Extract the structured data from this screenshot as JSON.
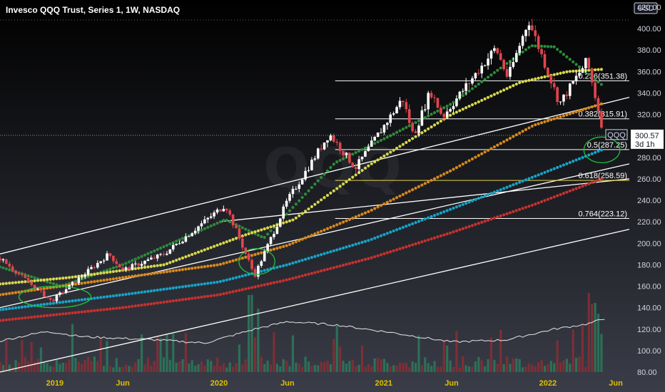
{
  "header": {
    "title": "Invesco QQQ Trust, Series 1, 1W, NASDAQ"
  },
  "watermark": {
    "text": "QQQ"
  },
  "chart_data": {
    "type": "candlestick",
    "title": "Invesco QQQ Trust, Series 1, 1W, NASDAQ",
    "currency": "USD",
    "ylim": [
      80,
      420
    ],
    "y_ticks": [
      80,
      100,
      120,
      140,
      160,
      180,
      200,
      220,
      240,
      260,
      280,
      300,
      320,
      340,
      360,
      380,
      400,
      420
    ],
    "y_tick_labels": [
      "80.00",
      "100.00",
      "120.00",
      "140.00",
      "160.00",
      "180.00",
      "200.00",
      "220.00",
      "240.00",
      "260.00",
      "280.00",
      "300.00",
      "320.00",
      "340.00",
      "360.00",
      "380.00",
      "400.00",
      "420.00"
    ],
    "x_range": [
      "2018-09-01",
      "2022-07-01"
    ],
    "x_ticks": [
      {
        "label": "2019",
        "date": "2019-01-01"
      },
      {
        "label": "Jun",
        "date": "2019-06-01"
      },
      {
        "label": "2020",
        "date": "2020-01-01"
      },
      {
        "label": "Jun",
        "date": "2020-06-01"
      },
      {
        "label": "2021",
        "date": "2021-01-01"
      },
      {
        "label": "Jun",
        "date": "2021-06-01"
      },
      {
        "label": "2022",
        "date": "2022-01-01"
      },
      {
        "label": "Jun",
        "date": "2022-06-01"
      }
    ],
    "price_anchors": [
      {
        "date": "2018-09-01",
        "close": 186
      },
      {
        "date": "2018-12-24",
        "close": 146
      },
      {
        "date": "2019-05-01",
        "close": 190
      },
      {
        "date": "2019-06-01",
        "close": 175
      },
      {
        "date": "2019-09-01",
        "close": 190
      },
      {
        "date": "2020-01-15",
        "close": 236
      },
      {
        "date": "2020-03-20",
        "close": 170
      },
      {
        "date": "2020-06-01",
        "close": 240
      },
      {
        "date": "2020-09-02",
        "close": 302
      },
      {
        "date": "2020-10-30",
        "close": 270
      },
      {
        "date": "2021-02-12",
        "close": 335
      },
      {
        "date": "2021-03-08",
        "close": 300
      },
      {
        "date": "2021-04-15",
        "close": 342
      },
      {
        "date": "2021-05-12",
        "close": 318
      },
      {
        "date": "2021-09-07",
        "close": 382
      },
      {
        "date": "2021-10-04",
        "close": 354
      },
      {
        "date": "2021-11-19",
        "close": 408
      },
      {
        "date": "2022-01-27",
        "close": 330
      },
      {
        "date": "2022-03-29",
        "close": 370
      },
      {
        "date": "2022-05-06",
        "close": 300.57
      }
    ],
    "moving_averages": [
      {
        "color": "#2e8b3a",
        "style": "dots",
        "anchors": [
          {
            "date": "2018-09-01",
            "value": 178
          },
          {
            "date": "2019-01-15",
            "value": 160
          },
          {
            "date": "2019-06-01",
            "value": 180
          },
          {
            "date": "2020-01-15",
            "value": 222
          },
          {
            "date": "2020-04-10",
            "value": 205
          },
          {
            "date": "2020-09-15",
            "value": 275
          },
          {
            "date": "2021-01-15",
            "value": 300
          },
          {
            "date": "2021-06-01",
            "value": 330
          },
          {
            "date": "2021-11-25",
            "value": 384
          },
          {
            "date": "2022-01-15",
            "value": 383
          },
          {
            "date": "2022-04-30",
            "value": 348
          }
        ]
      },
      {
        "color": "#d8d84a",
        "style": "dots",
        "anchors": [
          {
            "date": "2018-09-01",
            "value": 162
          },
          {
            "date": "2019-02-01",
            "value": 168
          },
          {
            "date": "2019-09-01",
            "value": 180
          },
          {
            "date": "2020-03-01",
            "value": 208
          },
          {
            "date": "2020-06-15",
            "value": 222
          },
          {
            "date": "2020-12-01",
            "value": 273
          },
          {
            "date": "2021-06-01",
            "value": 320
          },
          {
            "date": "2021-11-01",
            "value": 350
          },
          {
            "date": "2022-02-15",
            "value": 360
          },
          {
            "date": "2022-05-01",
            "value": 362
          }
        ]
      },
      {
        "color": "#d8891a",
        "style": "dots",
        "anchors": [
          {
            "date": "2018-09-01",
            "value": 152
          },
          {
            "date": "2019-06-01",
            "value": 168
          },
          {
            "date": "2020-01-01",
            "value": 180
          },
          {
            "date": "2020-06-01",
            "value": 198
          },
          {
            "date": "2020-12-01",
            "value": 230
          },
          {
            "date": "2021-06-01",
            "value": 268
          },
          {
            "date": "2021-12-01",
            "value": 310
          },
          {
            "date": "2022-05-01",
            "value": 330
          }
        ]
      },
      {
        "color": "#16a3c8",
        "style": "dots",
        "anchors": [
          {
            "date": "2018-09-01",
            "value": 138
          },
          {
            "date": "2019-06-01",
            "value": 152
          },
          {
            "date": "2020-01-01",
            "value": 164
          },
          {
            "date": "2020-06-01",
            "value": 180
          },
          {
            "date": "2020-12-01",
            "value": 203
          },
          {
            "date": "2021-06-01",
            "value": 232
          },
          {
            "date": "2021-12-01",
            "value": 262
          },
          {
            "date": "2022-05-01",
            "value": 287
          }
        ]
      },
      {
        "color": "#c8312e",
        "style": "dots",
        "anchors": [
          {
            "date": "2018-09-01",
            "value": 128
          },
          {
            "date": "2019-06-01",
            "value": 140
          },
          {
            "date": "2020-01-01",
            "value": 152
          },
          {
            "date": "2020-06-01",
            "value": 166
          },
          {
            "date": "2020-12-01",
            "value": 186
          },
          {
            "date": "2021-06-01",
            "value": 210
          },
          {
            "date": "2021-12-01",
            "value": 236
          },
          {
            "date": "2022-05-01",
            "value": 260
          }
        ]
      }
    ],
    "fibonacci_levels": [
      {
        "ratio": 0.236,
        "price": 351.38,
        "label": "0.236(351.38)",
        "color": "#ffffff"
      },
      {
        "ratio": 0.382,
        "price": 315.91,
        "label": "0.382(315.91)",
        "color": "#ffffff"
      },
      {
        "ratio": 0.5,
        "price": 287.25,
        "label": "0.5(287.25)",
        "color": "#ffffff"
      },
      {
        "ratio": 0.618,
        "price": 258.59,
        "label": "0.618(258.59)",
        "color": "#e8d44a"
      },
      {
        "ratio": 0.764,
        "price": 223.12,
        "label": "0.764(223.12)",
        "color": "#ffffff"
      }
    ],
    "fib_start_date": "2020-09-15",
    "trendlines": [
      {
        "from": {
          "date": "2018-09-01",
          "value": 190
        },
        "to": {
          "date": "2022-07-01",
          "value": 336
        }
      },
      {
        "from": {
          "date": "2018-09-01",
          "value": 140
        },
        "to": {
          "date": "2022-07-01",
          "value": 274
        }
      },
      {
        "from": {
          "date": "2020-01-01",
          "value": 220
        },
        "to": {
          "date": "2022-07-01",
          "value": 260
        }
      },
      {
        "from": {
          "date": "2018-09-01",
          "value": 80
        },
        "to": {
          "date": "2022-07-01",
          "value": 213
        }
      }
    ],
    "annotations": [
      {
        "type": "ellipse",
        "color": "#1fc23c",
        "center": {
          "date": "2019-01-01",
          "value": 150
        },
        "rx_days": 80,
        "ry_value": 10
      },
      {
        "type": "ellipse",
        "color": "#1fc23c",
        "center": {
          "date": "2020-03-25",
          "value": 183
        },
        "rx_days": 40,
        "ry_value": 12
      },
      {
        "type": "ellipse",
        "color": "#1fc23c",
        "center": {
          "date": "2022-05-01",
          "value": 287
        },
        "rx_days": 40,
        "ry_value": 12
      }
    ],
    "volume_line_anchors": [
      {
        "date": "2018-09-01",
        "value": 109
      },
      {
        "date": "2018-12-15",
        "value": 118
      },
      {
        "date": "2019-03-01",
        "value": 113
      },
      {
        "date": "2019-08-15",
        "value": 110
      },
      {
        "date": "2019-12-01",
        "value": 107
      },
      {
        "date": "2020-03-20",
        "value": 120
      },
      {
        "date": "2020-06-01",
        "value": 127
      },
      {
        "date": "2020-09-15",
        "value": 124
      },
      {
        "date": "2021-01-15",
        "value": 117
      },
      {
        "date": "2021-06-01",
        "value": 108
      },
      {
        "date": "2021-10-01",
        "value": 110
      },
      {
        "date": "2022-01-15",
        "value": 120
      },
      {
        "date": "2022-04-01",
        "value": 125
      },
      {
        "date": "2022-05-08",
        "value": 130
      }
    ],
    "price_label": {
      "symbol": "QQQ",
      "price": "300.57",
      "countdown": "3d 1h"
    }
  }
}
